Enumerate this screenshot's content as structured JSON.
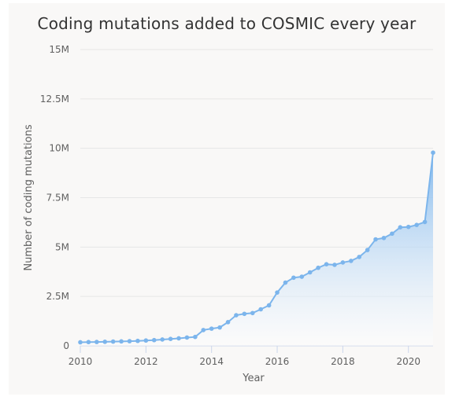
{
  "chart_data": {
    "type": "area",
    "title": "Coding mutations added to COSMIC every year",
    "xlabel": "Year",
    "ylabel": "Number of coding mutations",
    "xlim": [
      2010,
      2020.75
    ],
    "ylim": [
      0,
      15000000
    ],
    "x_ticks": [
      "2010",
      "2012",
      "2014",
      "2016",
      "2018",
      "2020"
    ],
    "y_ticks": [
      "0",
      "2.5M",
      "5M",
      "7.5M",
      "10M",
      "12.5M",
      "15M"
    ],
    "grid": true,
    "legend": "none",
    "colors": {
      "line": "#7cb5ec",
      "area_top": "#7cb5ec",
      "area_bottom": "#ffffff"
    },
    "series": [
      {
        "x": [
          2010.0,
          2010.25,
          2010.5,
          2010.75,
          2011.0,
          2011.25,
          2011.5,
          2011.75,
          2012.0,
          2012.25,
          2012.5,
          2012.75,
          2013.0,
          2013.25,
          2013.5,
          2013.75,
          2014.0,
          2014.25,
          2014.5,
          2014.75,
          2015.0,
          2015.25,
          2015.5,
          2015.75,
          2016.0,
          2016.25,
          2016.5,
          2016.75,
          2017.0,
          2017.25,
          2017.5,
          2017.75,
          2018.0,
          2018.25,
          2018.5,
          2018.75,
          2019.0,
          2019.25,
          2019.5,
          2019.75,
          2020.0,
          2020.25,
          2020.5,
          2020.75
        ],
        "values": [
          180000,
          190000,
          195000,
          205000,
          215000,
          225000,
          235000,
          250000,
          270000,
          290000,
          320000,
          350000,
          380000,
          420000,
          450000,
          800000,
          870000,
          930000,
          1200000,
          1550000,
          1620000,
          1660000,
          1850000,
          2050000,
          2700000,
          3200000,
          3450000,
          3500000,
          3720000,
          3950000,
          4130000,
          4100000,
          4220000,
          4300000,
          4500000,
          4850000,
          5390000,
          5460000,
          5680000,
          6000000,
          6020000,
          6120000,
          6270000,
          9780000
        ]
      }
    ]
  }
}
